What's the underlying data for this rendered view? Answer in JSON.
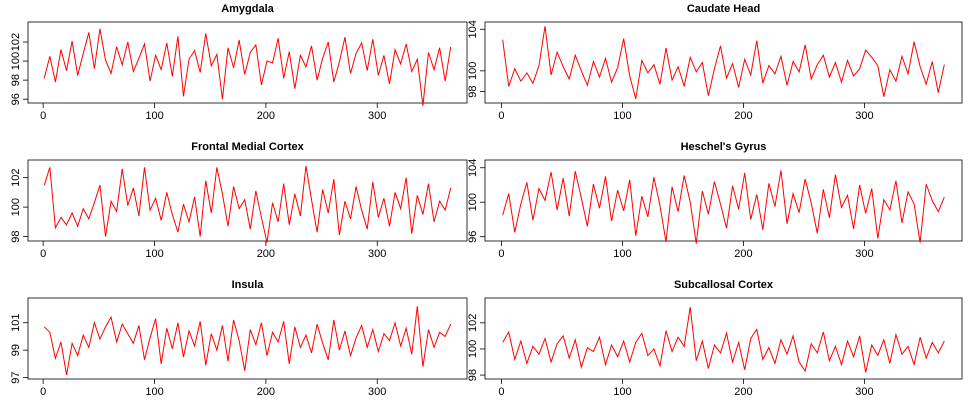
{
  "chart_data": [
    {
      "type": "line",
      "title": "Amygdala",
      "color": "#ff0000",
      "x": [
        1,
        6,
        11,
        16,
        21,
        26,
        31,
        36,
        41,
        46,
        51,
        56,
        61,
        66,
        71,
        76,
        81,
        86,
        91,
        96,
        101,
        106,
        111,
        116,
        121,
        126,
        131,
        136,
        141,
        146,
        151,
        156,
        161,
        166,
        171,
        176,
        181,
        186,
        191,
        196,
        201,
        206,
        211,
        216,
        221,
        226,
        231,
        236,
        241,
        246,
        251,
        256,
        261,
        266,
        271,
        276,
        281,
        286,
        291,
        296,
        301,
        306,
        311,
        316,
        321,
        326,
        331,
        336,
        341,
        346,
        351,
        356,
        361,
        366
      ],
      "values": [
        98.2,
        100.5,
        97.8,
        101.2,
        99.0,
        102.1,
        98.5,
        100.8,
        103.0,
        99.2,
        103.4,
        100.1,
        98.7,
        101.5,
        99.6,
        102.0,
        98.9,
        100.3,
        101.8,
        97.9,
        100.6,
        99.1,
        101.9,
        98.4,
        102.6,
        96.3,
        100.2,
        101.1,
        98.8,
        102.9,
        99.5,
        100.7,
        96.0,
        101.4,
        99.3,
        102.2,
        98.6,
        100.9,
        101.7,
        97.5,
        100.0,
        99.8,
        102.4,
        98.2,
        101.0,
        97.1,
        100.6,
        99.4,
        101.6,
        98.0,
        100.3,
        102.0,
        97.8,
        99.9,
        102.5,
        98.7,
        100.8,
        101.9,
        99.0,
        102.3,
        98.5,
        100.6,
        97.6,
        101.2,
        99.7,
        101.8,
        98.9,
        100.2,
        95.3,
        100.9,
        99.1,
        101.4,
        97.9,
        101.5
      ],
      "xlim": [
        -13.6,
        380.6
      ],
      "ylim": [
        95.6,
        104.1
      ],
      "xticks": [
        0,
        100,
        200,
        300
      ],
      "yticks": [
        96,
        98,
        100,
        102
      ]
    },
    {
      "type": "line",
      "title": "Caudate Head",
      "color": "#ff0000",
      "x": [
        1,
        6,
        11,
        16,
        21,
        26,
        31,
        36,
        41,
        46,
        51,
        56,
        61,
        66,
        71,
        76,
        81,
        86,
        91,
        96,
        101,
        106,
        111,
        116,
        121,
        126,
        131,
        136,
        141,
        146,
        151,
        156,
        161,
        166,
        171,
        176,
        181,
        186,
        191,
        196,
        201,
        206,
        211,
        216,
        221,
        226,
        231,
        236,
        241,
        246,
        251,
        256,
        261,
        266,
        271,
        276,
        281,
        286,
        291,
        296,
        301,
        306,
        311,
        316,
        321,
        326,
        331,
        336,
        341,
        346,
        351,
        356,
        361,
        366
      ],
      "values": [
        103.0,
        98.5,
        100.2,
        99.0,
        99.8,
        98.8,
        100.5,
        104.3,
        99.6,
        101.8,
        100.4,
        99.2,
        101.5,
        100.0,
        98.6,
        100.9,
        99.4,
        101.2,
        98.9,
        100.3,
        103.1,
        99.5,
        97.3,
        101.0,
        99.8,
        100.6,
        98.7,
        102.2,
        99.1,
        100.4,
        98.5,
        101.3,
        99.9,
        100.8,
        97.6,
        100.2,
        102.4,
        99.3,
        100.7,
        98.4,
        101.1,
        99.6,
        102.9,
        98.8,
        100.5,
        99.7,
        101.4,
        98.6,
        100.9,
        99.9,
        102.5,
        99.2,
        100.6,
        101.5,
        99.4,
        100.8,
        98.9,
        101.0,
        99.5,
        100.2,
        102.0,
        101.3,
        100.5,
        97.5,
        100.1,
        99.0,
        101.4,
        99.7,
        102.8,
        100.4,
        98.7,
        100.9,
        97.9,
        100.6
      ],
      "xlim": [
        -13.6,
        380.6
      ],
      "ylim": [
        96.9,
        104.7
      ],
      "xticks": [
        0,
        100,
        200,
        300
      ],
      "yticks": [
        98,
        100,
        104
      ]
    },
    {
      "type": "line",
      "title": "Frontal Medial Cortex",
      "color": "#ff0000",
      "x": [
        1,
        6,
        11,
        16,
        21,
        26,
        31,
        36,
        41,
        46,
        51,
        56,
        61,
        66,
        71,
        76,
        81,
        86,
        91,
        96,
        101,
        106,
        111,
        116,
        121,
        126,
        131,
        136,
        141,
        146,
        151,
        156,
        161,
        166,
        171,
        176,
        181,
        186,
        191,
        196,
        201,
        206,
        211,
        216,
        221,
        226,
        231,
        236,
        241,
        246,
        251,
        256,
        261,
        266,
        271,
        276,
        281,
        286,
        291,
        296,
        301,
        306,
        311,
        316,
        321,
        326,
        331,
        336,
        341,
        346,
        351,
        356,
        361,
        366
      ],
      "values": [
        101.5,
        102.7,
        98.6,
        99.3,
        98.8,
        99.6,
        98.7,
        99.9,
        99.2,
        100.3,
        101.5,
        98.0,
        100.4,
        99.7,
        102.6,
        100.1,
        101.3,
        99.4,
        102.7,
        99.8,
        100.6,
        99.1,
        101.0,
        99.5,
        98.3,
        100.2,
        99.0,
        100.7,
        98.0,
        101.8,
        99.6,
        102.7,
        100.9,
        98.7,
        101.4,
        99.9,
        100.5,
        98.5,
        101.1,
        99.3,
        97.6,
        100.3,
        99.0,
        101.6,
        98.8,
        100.9,
        99.4,
        102.8,
        100.5,
        98.3,
        101.2,
        99.6,
        101.9,
        98.1,
        100.4,
        99.2,
        101.4,
        99.8,
        98.5,
        101.7,
        99.3,
        100.6,
        98.7,
        101.0,
        99.9,
        102.0,
        98.2,
        100.8,
        99.5,
        101.6,
        99.0,
        100.4,
        99.8,
        101.3
      ],
      "xlim": [
        -13.6,
        380.6
      ],
      "ylim": [
        97.7,
        103.2
      ],
      "xticks": [
        0,
        100,
        200,
        300
      ],
      "yticks": [
        98,
        100,
        102
      ]
    },
    {
      "type": "line",
      "title": "Heschel's Gyrus",
      "color": "#ff0000",
      "x": [
        1,
        6,
        11,
        16,
        21,
        26,
        31,
        36,
        41,
        46,
        51,
        56,
        61,
        66,
        71,
        76,
        81,
        86,
        91,
        96,
        101,
        106,
        111,
        116,
        121,
        126,
        131,
        136,
        141,
        146,
        151,
        156,
        161,
        166,
        171,
        176,
        181,
        186,
        191,
        196,
        201,
        206,
        211,
        216,
        221,
        226,
        231,
        236,
        241,
        246,
        251,
        256,
        261,
        266,
        271,
        276,
        281,
        286,
        291,
        296,
        301,
        306,
        311,
        316,
        321,
        326,
        331,
        336,
        341,
        346,
        351,
        356,
        361,
        366
      ],
      "values": [
        98.5,
        101.0,
        96.5,
        99.8,
        102.3,
        97.9,
        101.6,
        100.2,
        103.5,
        99.1,
        102.8,
        98.4,
        103.6,
        100.5,
        97.2,
        102.1,
        99.3,
        103.0,
        97.8,
        101.4,
        99.0,
        102.6,
        96.1,
        100.7,
        98.3,
        102.9,
        99.6,
        95.4,
        101.8,
        98.9,
        103.1,
        100.0,
        95.2,
        101.3,
        98.6,
        102.4,
        99.8,
        97.0,
        101.9,
        99.2,
        103.4,
        98.0,
        100.9,
        96.8,
        102.2,
        99.5,
        103.7,
        97.5,
        101.0,
        98.8,
        102.7,
        99.9,
        96.4,
        101.5,
        98.2,
        103.2,
        99.4,
        100.8,
        96.9,
        102.0,
        98.7,
        101.6,
        95.8,
        100.3,
        99.1,
        102.5,
        97.6,
        101.2,
        99.8,
        95.3,
        102.1,
        100.2,
        98.9,
        100.6
      ],
      "xlim": [
        -13.6,
        380.6
      ],
      "ylim": [
        95.5,
        104.9
      ],
      "xticks": [
        0,
        100,
        200,
        300
      ],
      "yticks": [
        96,
        100,
        104
      ]
    },
    {
      "type": "line",
      "title": "Insula",
      "color": "#ff0000",
      "x": [
        1,
        6,
        11,
        16,
        21,
        26,
        31,
        36,
        41,
        46,
        51,
        56,
        61,
        66,
        71,
        76,
        81,
        86,
        91,
        96,
        101,
        106,
        111,
        116,
        121,
        126,
        131,
        136,
        141,
        146,
        151,
        156,
        161,
        166,
        171,
        176,
        181,
        186,
        191,
        196,
        201,
        206,
        211,
        216,
        221,
        226,
        231,
        236,
        241,
        246,
        251,
        256,
        261,
        266,
        271,
        276,
        281,
        286,
        291,
        296,
        301,
        306,
        311,
        316,
        321,
        326,
        331,
        336,
        341,
        346,
        351,
        356,
        361,
        366
      ],
      "values": [
        100.7,
        100.3,
        98.4,
        99.6,
        97.2,
        99.5,
        98.6,
        100.1,
        99.2,
        101.0,
        99.8,
        100.7,
        101.4,
        99.6,
        100.9,
        100.2,
        99.5,
        100.8,
        98.3,
        99.9,
        101.3,
        98.0,
        100.6,
        99.1,
        101.0,
        98.5,
        100.4,
        99.3,
        101.1,
        97.9,
        100.2,
        99.0,
        100.8,
        98.2,
        101.2,
        99.7,
        97.5,
        100.5,
        99.4,
        101.0,
        98.6,
        100.3,
        99.6,
        101.1,
        98.0,
        100.7,
        99.2,
        100.1,
        98.8,
        100.9,
        99.5,
        98.3,
        101.2,
        99.0,
        100.4,
        98.6,
        99.9,
        100.8,
        99.2,
        100.5,
        98.9,
        100.2,
        99.7,
        101.0,
        99.3,
        100.6,
        98.7,
        102.2,
        97.8,
        100.5,
        99.2,
        100.3,
        100.0,
        100.9
      ],
      "xlim": [
        -13.6,
        380.6
      ],
      "ylim": [
        96.9,
        102.8
      ],
      "xticks": [
        0,
        100,
        200,
        300
      ],
      "yticks": [
        97,
        99,
        101
      ]
    },
    {
      "type": "line",
      "title": "Subcallosal Cortex",
      "color": "#ff0000",
      "x": [
        1,
        6,
        11,
        16,
        21,
        26,
        31,
        36,
        41,
        46,
        51,
        56,
        61,
        66,
        71,
        76,
        81,
        86,
        91,
        96,
        101,
        106,
        111,
        116,
        121,
        126,
        131,
        136,
        141,
        146,
        151,
        156,
        161,
        166,
        171,
        176,
        181,
        186,
        191,
        196,
        201,
        206,
        211,
        216,
        221,
        226,
        231,
        236,
        241,
        246,
        251,
        256,
        261,
        266,
        271,
        276,
        281,
        286,
        291,
        296,
        301,
        306,
        311,
        316,
        321,
        326,
        331,
        336,
        341,
        346,
        351,
        356,
        361,
        366
      ],
      "values": [
        100.5,
        101.3,
        99.2,
        100.6,
        98.9,
        100.2,
        99.6,
        100.8,
        99.0,
        100.4,
        101.0,
        99.3,
        100.7,
        98.6,
        100.1,
        99.8,
        100.9,
        98.8,
        100.3,
        99.4,
        100.6,
        99.0,
        100.5,
        101.2,
        99.5,
        100.0,
        98.7,
        101.4,
        99.8,
        100.9,
        100.2,
        103.2,
        99.1,
        100.6,
        98.5,
        100.3,
        99.7,
        101.2,
        99.0,
        100.5,
        98.4,
        100.8,
        101.5,
        99.2,
        100.1,
        98.9,
        100.7,
        99.6,
        101.0,
        99.0,
        98.3,
        100.4,
        99.7,
        101.3,
        99.1,
        100.2,
        98.8,
        100.6,
        99.4,
        101.0,
        98.2,
        100.3,
        99.5,
        100.7,
        98.9,
        101.1,
        99.6,
        100.2,
        98.8,
        100.9,
        99.3,
        100.5,
        99.7,
        100.6
      ],
      "xlim": [
        -13.6,
        380.6
      ],
      "ylim": [
        97.7,
        103.9
      ],
      "xticks": [
        0,
        100,
        200,
        300
      ],
      "yticks": [
        98,
        100,
        102
      ]
    }
  ]
}
